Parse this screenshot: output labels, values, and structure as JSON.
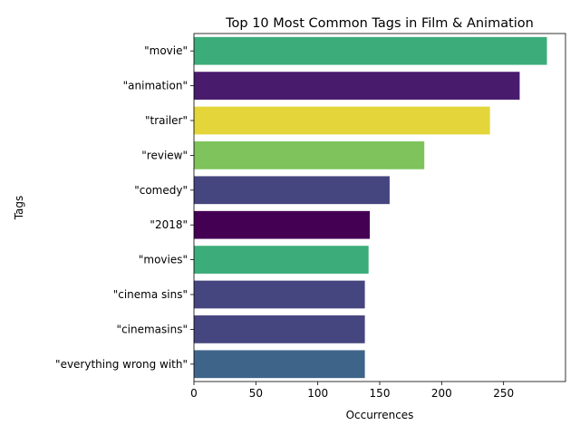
{
  "chart_data": {
    "type": "bar",
    "orientation": "horizontal",
    "title": "Top 10 Most Common Tags in Film & Animation",
    "xlabel": "Occurrences",
    "ylabel": "Tags",
    "xlim": [
      0,
      300
    ],
    "xticks": [
      0,
      50,
      100,
      150,
      200,
      250
    ],
    "xtick_labels": [
      "0",
      "50",
      "100",
      "150",
      "200",
      "250"
    ],
    "grid": false,
    "legend": "none",
    "categories": [
      "\"movie\"",
      "\"animation\"",
      "\"trailer\"",
      "\"review\"",
      "\"comedy\"",
      "\"2018\"",
      "\"movies\"",
      "\"cinema sins\"",
      "\"cinemasins\"",
      "\"everything wrong with\""
    ],
    "values": [
      285,
      263,
      239,
      186,
      158,
      142,
      141,
      138,
      138,
      138
    ],
    "colors": [
      "#3cad7a",
      "#481b6d",
      "#e4d63a",
      "#7ec35b",
      "#45457f",
      "#440154",
      "#3cad7a",
      "#45457f",
      "#45457f",
      "#3f648a"
    ]
  }
}
